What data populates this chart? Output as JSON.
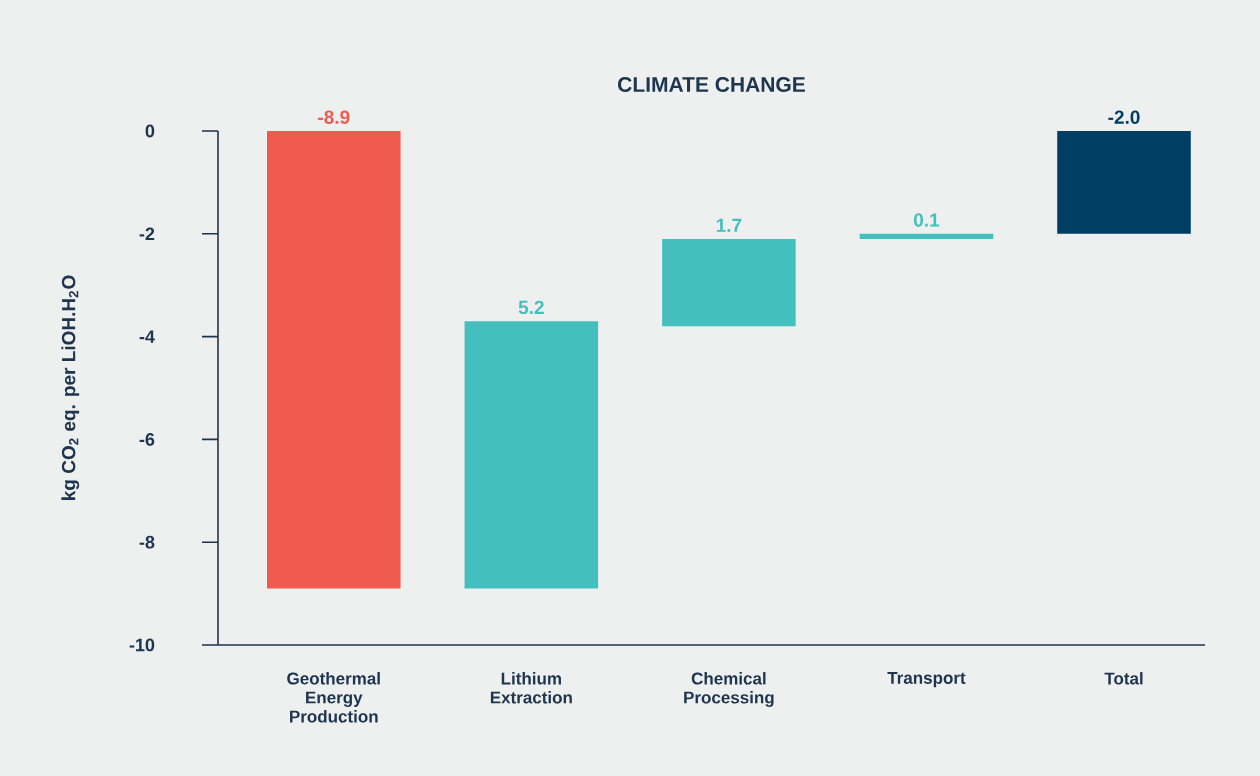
{
  "chart_data": {
    "type": "bar",
    "title": "CLIMATE CHANGE",
    "ylabel": "kg CO$_{2}$ eq. per LiOH.H$_{2}$O",
    "categories": [
      "Geothermal Energy Production",
      "Lithium Extraction",
      "Chemical Processing",
      "Transport",
      "Total"
    ],
    "values": [
      -8.9,
      5.2,
      1.7,
      0.1,
      -2.0
    ],
    "base": [
      0,
      -8.9,
      -3.8,
      -2.1,
      0
    ],
    "colors": [
      "#f05a4f",
      "#43c0bd",
      "#43c0bd",
      "#43c0bd",
      "#003f63"
    ],
    "value_labels": [
      "-8.9",
      "5.2",
      "1.7",
      "0.1",
      "-2.0"
    ],
    "grid": false,
    "ylim": [
      -10,
      0
    ],
    "yticks": [
      -10,
      -8,
      -6,
      -4,
      -2,
      0
    ]
  }
}
